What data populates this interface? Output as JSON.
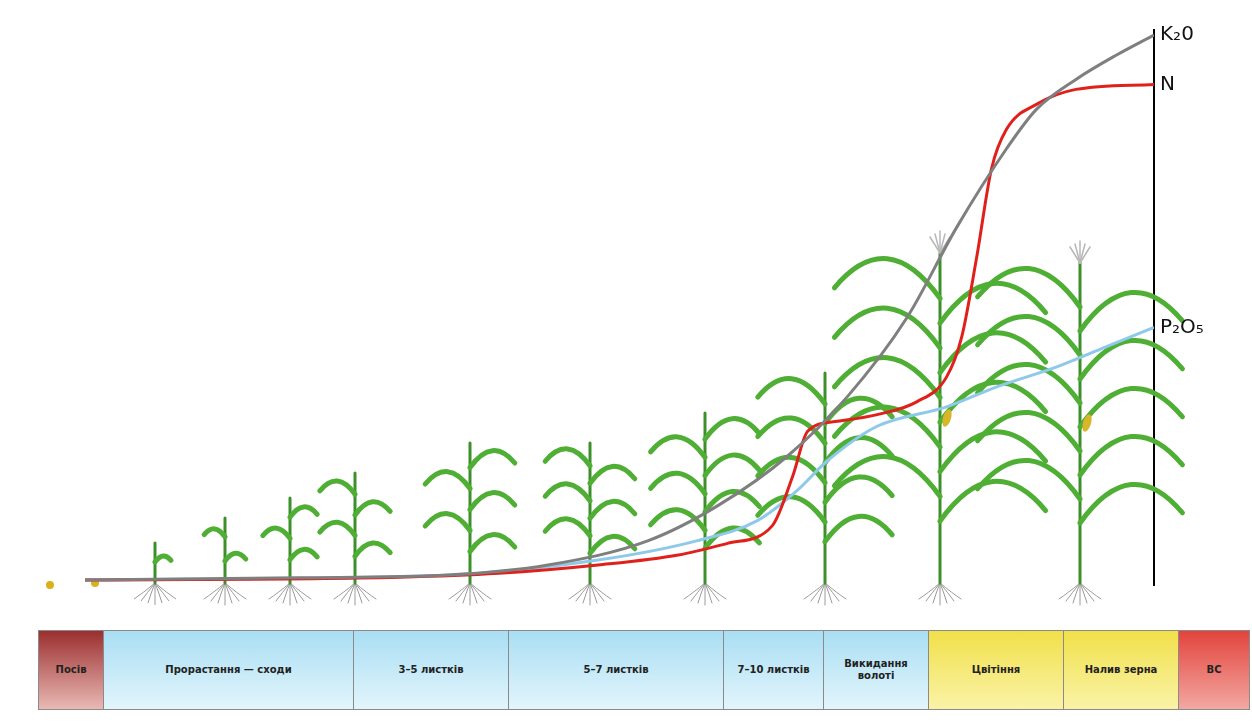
{
  "chart_data": {
    "type": "line",
    "series": [
      {
        "name": "K₂0",
        "color": "#7f7f7f",
        "x": [
          0,
          20.0,
          34.0,
          43.3,
          52.7,
          59.2,
          65.7,
          71.3,
          76.9,
          81.5,
          86.2,
          89.0,
          92.7,
          96.5,
          100
        ],
        "values": [
          0.9,
          1.3,
          1.8,
          3.6,
          8.0,
          14.3,
          23.2,
          33.9,
          48.2,
          64.3,
          78.6,
          85.7,
          91.1,
          95.5,
          99.1
        ]
      },
      {
        "name": "N",
        "color": "#e0201b",
        "x": [
          0,
          29.4,
          38.7,
          48.0,
          55.5,
          60.1,
          64.3,
          66.2,
          67.6,
          70.4,
          74.1,
          77.8,
          80.6,
          82.0,
          83.4,
          84.8,
          86.2,
          89.0,
          92.7,
          100
        ],
        "values": [
          0.9,
          1.4,
          2.1,
          3.6,
          5.4,
          7.5,
          10.7,
          19.6,
          27.7,
          29.5,
          30.7,
          33.0,
          37.5,
          44.6,
          58.9,
          75.0,
          82.1,
          86.6,
          89.3,
          90.2
        ]
      },
      {
        "name": "P₂O₅",
        "color": "#8ec9ea",
        "x": [
          0,
          34.0,
          48.0,
          57.3,
          62.9,
          66.6,
          69.4,
          74.1,
          80.6,
          85.3,
          90.9,
          95.5,
          100
        ],
        "values": [
          0.9,
          1.8,
          4.5,
          8.0,
          11.6,
          17.0,
          22.3,
          28.6,
          32.1,
          35.7,
          39.3,
          42.9,
          46.4
        ]
      }
    ],
    "xlim": [
      0,
      100
    ],
    "xticks": [
      0,
      100
    ],
    "ylim": [
      0,
      100
    ],
    "yticks": [
      0,
      100
    ],
    "tick_labels": false,
    "grid": false
  },
  "stages": [
    "Посів",
    "Прорастання — сходи",
    "3–5 листків",
    "5–7 листків",
    "7–10 листків",
    "Викидання волоті",
    "Цвітіння",
    "Налив зерна",
    "ВС"
  ]
}
